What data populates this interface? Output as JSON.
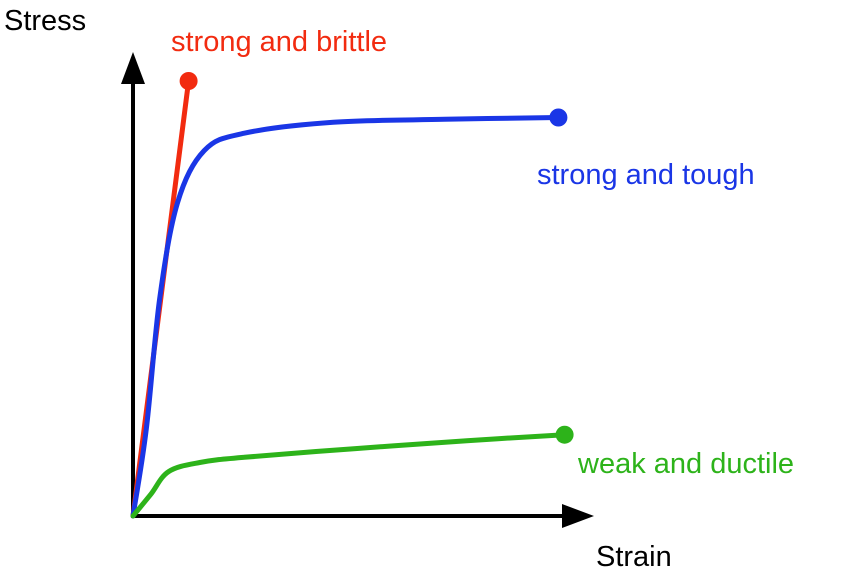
{
  "chart_data": {
    "type": "line",
    "xlabel": "Strain",
    "ylabel": "Stress",
    "grid": false,
    "legend": "none",
    "xlim": [
      0,
      100
    ],
    "ylim": [
      0,
      100
    ],
    "series": [
      {
        "name": "strong and brittle",
        "color": "#f22b10",
        "points": [
          [
            0,
            0
          ],
          [
            12.5,
            100
          ]
        ],
        "end": [
          12.5,
          100
        ]
      },
      {
        "name": "strong and tough",
        "color": "#1a36e6",
        "points": [
          [
            0,
            0
          ],
          [
            3,
            20
          ],
          [
            6,
            50
          ],
          [
            10,
            72
          ],
          [
            16,
            84
          ],
          [
            25,
            88
          ],
          [
            45,
            90.5
          ],
          [
            70,
            91.2
          ],
          [
            95.6,
            91.6
          ]
        ],
        "end": [
          95.6,
          91.6
        ]
      },
      {
        "name": "weak and ductile",
        "color": "#2db31a",
        "points": [
          [
            0,
            0
          ],
          [
            4,
            5
          ],
          [
            8,
            10.2
          ],
          [
            15,
            12.3
          ],
          [
            25,
            13.5
          ],
          [
            50,
            15.5
          ],
          [
            75,
            17.3
          ],
          [
            97,
            18.7
          ]
        ],
        "end": [
          97,
          18.7
        ]
      }
    ]
  }
}
